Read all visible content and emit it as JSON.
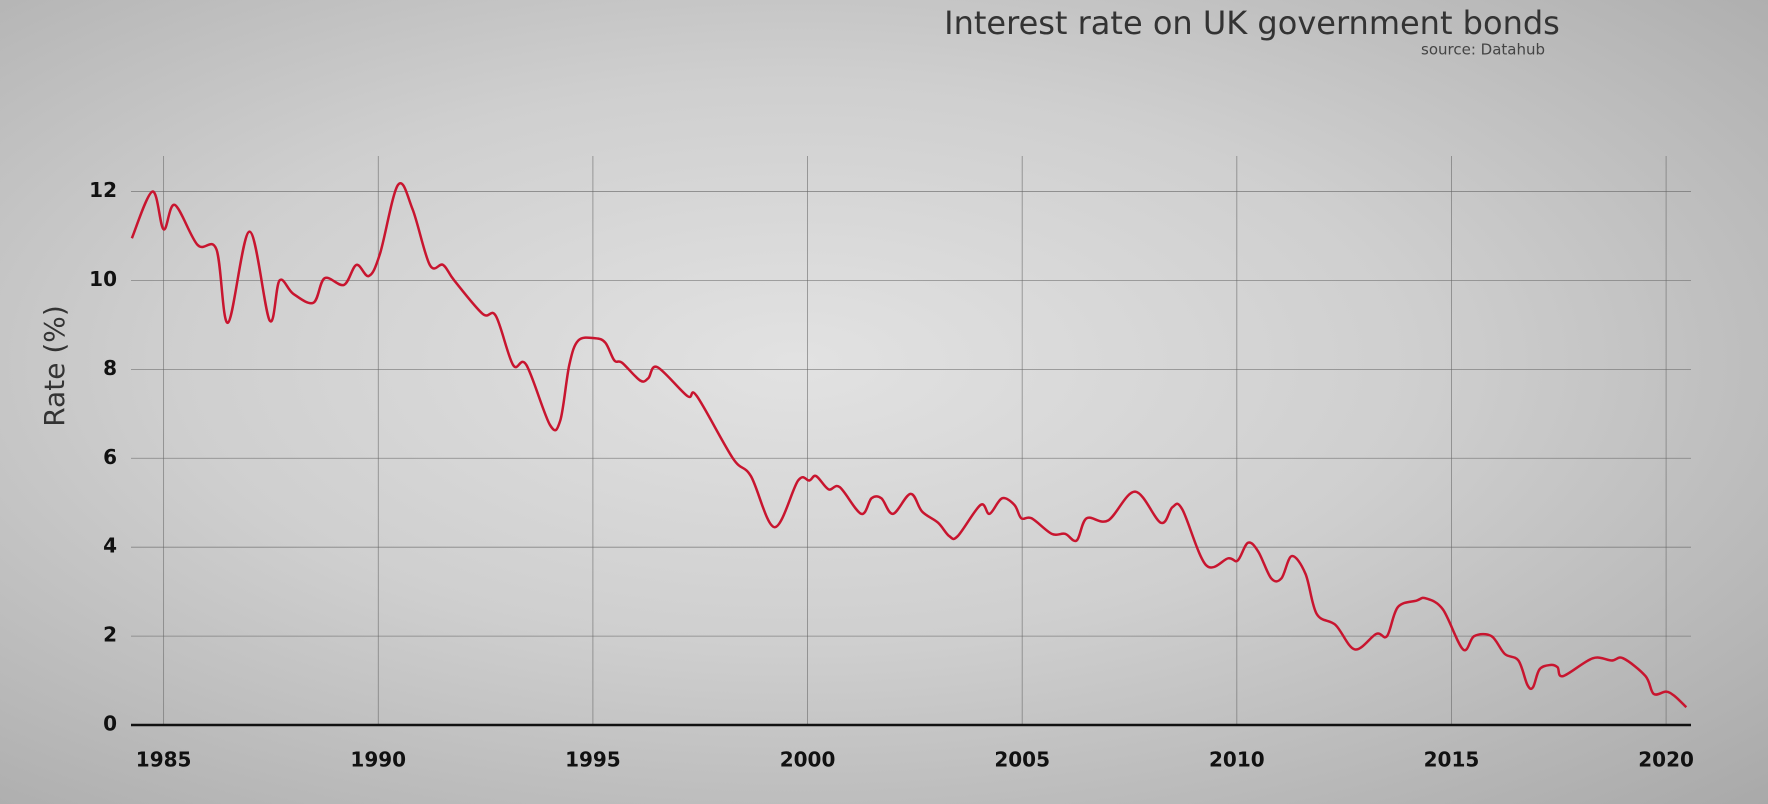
{
  "chart_data": {
    "type": "line",
    "title": "Interest rate on UK government bonds",
    "subtitle": "source: Datahub",
    "y_label": "Rate (%)",
    "xlim": [
      1984.24,
      2020.58
    ],
    "ylim": [
      0,
      12.8
    ],
    "xticks": [
      1985,
      1990,
      1995,
      2000,
      2005,
      2010,
      2015,
      2020
    ],
    "yticks": [
      0,
      2,
      4,
      6,
      8,
      10,
      12
    ],
    "grid": true,
    "x": [
      1984.26,
      1984.74,
      1985.0,
      1985.26,
      1985.79,
      1986.23,
      1986.5,
      1987.0,
      1987.47,
      1987.7,
      1988.02,
      1988.49,
      1988.75,
      1989.2,
      1989.49,
      1989.78,
      1990.04,
      1990.46,
      1990.8,
      1991.2,
      1991.51,
      1991.77,
      1992.43,
      1992.74,
      1993.14,
      1993.45,
      1994.0,
      1994.24,
      1994.45,
      1994.66,
      1995.05,
      1995.29,
      1995.5,
      1995.68,
      1996.1,
      1996.29,
      1996.5,
      1997.2,
      1997.42,
      1998.26,
      1998.68,
      1999.23,
      1999.78,
      2000.04,
      2000.2,
      2000.49,
      2000.75,
      2001.25,
      2001.49,
      2001.72,
      2001.99,
      2002.4,
      2002.67,
      2003.04,
      2003.3,
      2003.5,
      2004.03,
      2004.24,
      2004.53,
      2004.82,
      2004.98,
      2005.22,
      2005.69,
      2006.0,
      2006.27,
      2006.5,
      2007.0,
      2007.63,
      2008.23,
      2008.5,
      2008.73,
      2009.28,
      2009.8,
      2010.02,
      2010.26,
      2010.5,
      2010.8,
      2011.04,
      2011.28,
      2011.6,
      2011.86,
      2012.3,
      2012.75,
      2013.25,
      2013.5,
      2013.75,
      2014.19,
      2014.4,
      2014.8,
      2015.27,
      2015.53,
      2015.93,
      2016.24,
      2016.56,
      2016.77,
      2016.9,
      2017.05,
      2017.3,
      2017.47,
      2017.6,
      2018.29,
      2018.73,
      2019.0,
      2019.52,
      2019.71,
      2020.0,
      2020.2,
      2020.47
    ],
    "series": [
      {
        "name": "Rate",
        "color": "#c8152f",
        "values": [
          10.95,
          12.0,
          11.15,
          11.7,
          10.8,
          10.7,
          9.05,
          11.1,
          9.1,
          10.0,
          9.7,
          9.5,
          10.05,
          9.9,
          10.35,
          10.1,
          10.6,
          12.15,
          11.6,
          10.35,
          10.35,
          10.0,
          9.25,
          9.2,
          8.1,
          8.1,
          6.75,
          6.85,
          8.1,
          8.65,
          8.7,
          8.6,
          8.2,
          8.15,
          7.75,
          7.8,
          8.05,
          7.4,
          7.4,
          6.0,
          5.6,
          4.45,
          5.5,
          5.5,
          5.6,
          5.3,
          5.35,
          4.75,
          5.1,
          5.1,
          4.75,
          5.2,
          4.8,
          4.55,
          4.25,
          4.25,
          4.95,
          4.75,
          5.1,
          4.95,
          4.65,
          4.65,
          4.3,
          4.3,
          4.15,
          4.65,
          4.6,
          5.25,
          4.55,
          4.9,
          4.85,
          3.6,
          3.75,
          3.7,
          4.1,
          3.9,
          3.3,
          3.3,
          3.8,
          3.4,
          2.5,
          2.25,
          1.7,
          2.05,
          2.0,
          2.65,
          2.8,
          2.85,
          2.6,
          1.7,
          2.0,
          2.0,
          1.6,
          1.45,
          0.9,
          0.85,
          1.25,
          1.35,
          1.3,
          1.1,
          1.5,
          1.45,
          1.5,
          1.1,
          0.7,
          0.75,
          0.65,
          0.4
        ]
      }
    ]
  }
}
